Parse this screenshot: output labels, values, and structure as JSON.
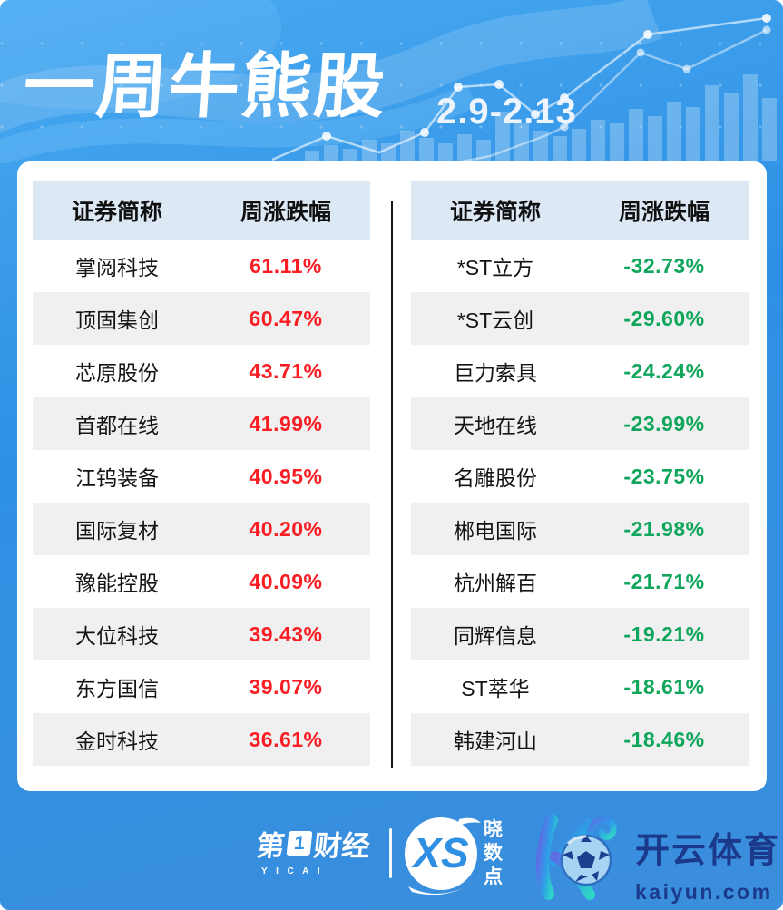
{
  "header": {
    "title": "一周牛熊股",
    "date_range": "2.9-2.13"
  },
  "chart_data": [
    {
      "type": "table",
      "panel": "weekly-top-gainers",
      "columns": [
        "证券简称",
        "周涨跌幅"
      ],
      "rows": [
        [
          "掌阅科技",
          "61.11%"
        ],
        [
          "顶固集创",
          "60.47%"
        ],
        [
          "芯原股份",
          "43.71%"
        ],
        [
          "首都在线",
          "41.99%"
        ],
        [
          "江钨装备",
          "40.95%"
        ],
        [
          "国际复材",
          "40.20%"
        ],
        [
          "豫能控股",
          "40.09%"
        ],
        [
          "大位科技",
          "39.43%"
        ],
        [
          "东方国信",
          "39.07%"
        ],
        [
          "金时科技",
          "36.61%"
        ]
      ],
      "value_color": "#fa1e24"
    },
    {
      "type": "table",
      "panel": "weekly-top-losers",
      "columns": [
        "证券简称",
        "周涨跌幅"
      ],
      "rows": [
        [
          "*ST立方",
          "-32.73%"
        ],
        [
          "*ST云创",
          "-29.60%"
        ],
        [
          "巨力索具",
          "-24.24%"
        ],
        [
          "天地在线",
          "-23.99%"
        ],
        [
          "名雕股份",
          "-23.75%"
        ],
        [
          "郴电国际",
          "-21.98%"
        ],
        [
          "杭州解百",
          "-21.71%"
        ],
        [
          "同辉信息",
          "-19.21%"
        ],
        [
          "ST萃华",
          "-18.61%"
        ],
        [
          "韩建河山",
          "-18.46%"
        ]
      ],
      "value_color": "#0fa65c"
    }
  ],
  "footer": {
    "yicai": {
      "prefix": "第",
      "digit": "1",
      "suffix": "财经",
      "latin": "YICAI"
    },
    "xiaoshudian": {
      "monogram": "XS",
      "chars": [
        "晓",
        "数",
        "点"
      ]
    },
    "kaiyun": {
      "name": "开云体育",
      "domain": "kaiyun.com"
    }
  },
  "colors": {
    "up_red": "#fa1e24",
    "down_green": "#0fa65c",
    "background_blue": "#2f8fe2",
    "table_header_bg": "#dce9f5",
    "alt_row_bg": "#f0f0f0",
    "kaiyun_navy": "#1b3a8c"
  }
}
